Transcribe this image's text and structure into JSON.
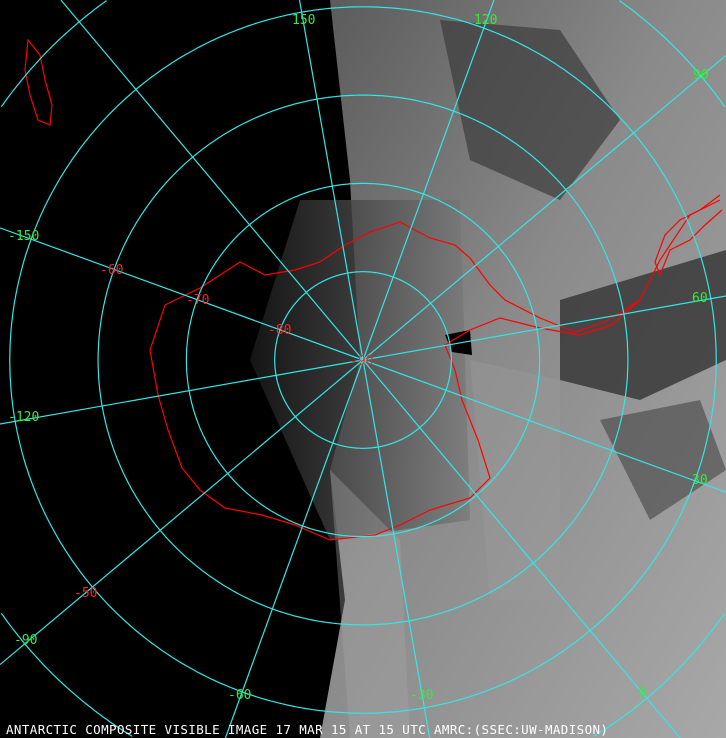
{
  "caption": "ANTARCTIC COMPOSITE VISIBLE IMAGE 17 MAR 15 AT 15 UTC AMRC:(SSEC:UW-MADISON)",
  "grid": {
    "longitude_labels": [
      "150",
      "120",
      "90",
      "60",
      "30",
      "0",
      "-30",
      "-60",
      "-90",
      "-120",
      "-150"
    ],
    "latitude_labels": [
      "-90",
      "-80",
      "-70",
      "-60",
      "-50"
    ]
  },
  "colors": {
    "graticule": "#33e6e6",
    "longitude_label": "#33ee33",
    "latitude_label": "#ff2020",
    "coastline": "#ff0000",
    "background": "#000000",
    "caption": "#ffffff"
  }
}
